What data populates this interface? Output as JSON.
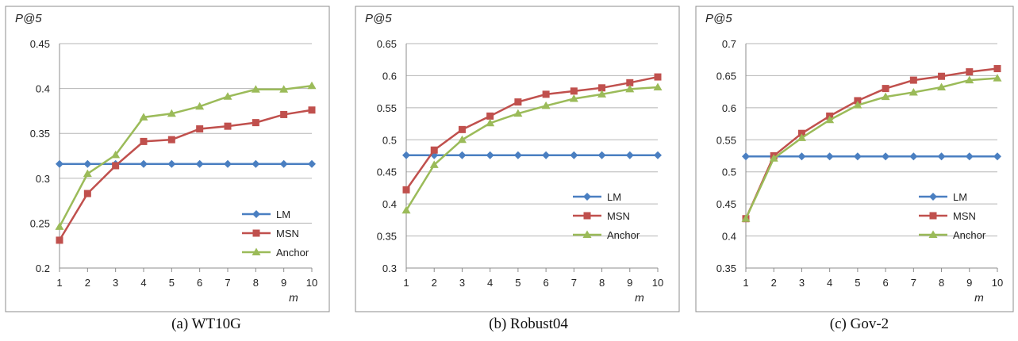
{
  "chart_data": [
    {
      "type": "line",
      "ylabel": "P@5",
      "xlabel": "m",
      "caption": "(a) WT10G",
      "x": [
        1,
        2,
        3,
        4,
        5,
        6,
        7,
        8,
        9,
        10
      ],
      "ylim": [
        0.2,
        0.45
      ],
      "yticks": [
        0.2,
        0.25,
        0.3,
        0.35,
        0.4,
        0.45
      ],
      "ytick_labels": [
        "0.2",
        "0.25",
        "0.3",
        "0.35",
        "0.4",
        "0.45"
      ],
      "grid": true,
      "legend_position": "bottom-right",
      "series": [
        {
          "name": "LM",
          "color": "#4a7fc1",
          "marker": "diamond",
          "values": [
            0.316,
            0.316,
            0.316,
            0.316,
            0.316,
            0.316,
            0.316,
            0.316,
            0.316,
            0.316
          ]
        },
        {
          "name": "MSN",
          "color": "#c0504d",
          "marker": "square",
          "values": [
            0.231,
            0.283,
            0.314,
            0.341,
            0.343,
            0.355,
            0.358,
            0.362,
            0.371,
            0.376
          ]
        },
        {
          "name": "Anchor",
          "color": "#9bbb59",
          "marker": "triangle",
          "values": [
            0.246,
            0.305,
            0.326,
            0.368,
            0.372,
            0.38,
            0.391,
            0.399,
            0.399,
            0.403
          ]
        }
      ]
    },
    {
      "type": "line",
      "ylabel": "P@5",
      "xlabel": "m",
      "caption": "(b) Robust04",
      "x": [
        1,
        2,
        3,
        4,
        5,
        6,
        7,
        8,
        9,
        10
      ],
      "ylim": [
        0.3,
        0.65
      ],
      "yticks": [
        0.3,
        0.35,
        0.4,
        0.45,
        0.5,
        0.55,
        0.6,
        0.65
      ],
      "ytick_labels": [
        "0.3",
        "0.35",
        "0.4",
        "0.45",
        "0.5",
        "0.55",
        "0.6",
        "0.65"
      ],
      "grid": true,
      "legend_position": "right",
      "series": [
        {
          "name": "LM",
          "color": "#4a7fc1",
          "marker": "diamond",
          "values": [
            0.476,
            0.476,
            0.476,
            0.476,
            0.476,
            0.476,
            0.476,
            0.476,
            0.476,
            0.476
          ]
        },
        {
          "name": "MSN",
          "color": "#c0504d",
          "marker": "square",
          "values": [
            0.422,
            0.484,
            0.516,
            0.537,
            0.559,
            0.571,
            0.576,
            0.581,
            0.589,
            0.598
          ]
        },
        {
          "name": "Anchor",
          "color": "#9bbb59",
          "marker": "triangle",
          "values": [
            0.39,
            0.461,
            0.5,
            0.526,
            0.541,
            0.553,
            0.564,
            0.571,
            0.579,
            0.582
          ]
        }
      ]
    },
    {
      "type": "line",
      "ylabel": "P@5",
      "xlabel": "m",
      "caption": "(c) Gov-2",
      "x": [
        1,
        2,
        3,
        4,
        5,
        6,
        7,
        8,
        9,
        10
      ],
      "ylim": [
        0.35,
        0.7
      ],
      "yticks": [
        0.35,
        0.4,
        0.45,
        0.5,
        0.55,
        0.6,
        0.65,
        0.7
      ],
      "ytick_labels": [
        "0.35",
        "0.4",
        "0.45",
        "0.5",
        "0.55",
        "0.6",
        "0.65",
        "0.7"
      ],
      "grid": true,
      "legend_position": "bottom-right",
      "series": [
        {
          "name": "LM",
          "color": "#4a7fc1",
          "marker": "diamond",
          "values": [
            0.524,
            0.524,
            0.524,
            0.524,
            0.524,
            0.524,
            0.524,
            0.524,
            0.524,
            0.524
          ]
        },
        {
          "name": "MSN",
          "color": "#c0504d",
          "marker": "square",
          "values": [
            0.427,
            0.525,
            0.56,
            0.587,
            0.611,
            0.63,
            0.643,
            0.649,
            0.656,
            0.661
          ]
        },
        {
          "name": "Anchor",
          "color": "#9bbb59",
          "marker": "triangle",
          "values": [
            0.427,
            0.521,
            0.553,
            0.581,
            0.604,
            0.617,
            0.624,
            0.632,
            0.643,
            0.646
          ]
        }
      ]
    }
  ]
}
